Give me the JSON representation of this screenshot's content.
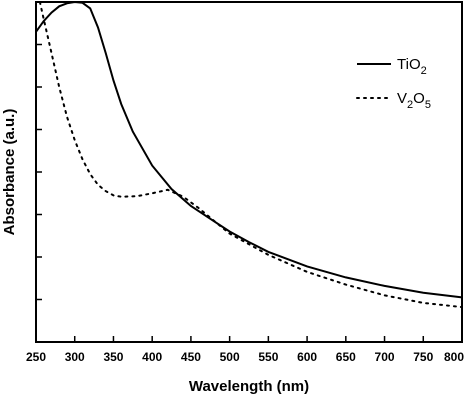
{
  "chart_data": {
    "type": "line",
    "xlabel": "Wavelength (nm)",
    "ylabel": "Absorbance (a.u.)",
    "xlim": [
      250,
      800
    ],
    "ylim": [
      0,
      8
    ],
    "x_ticks": [
      250,
      300,
      350,
      400,
      450,
      500,
      550,
      600,
      650,
      700,
      750,
      800
    ],
    "y_ticks_labeled": false,
    "grid": false,
    "legend_position": "top-right",
    "series": [
      {
        "name": "TiO2",
        "legend_main": "TiO",
        "legend_sub": "2",
        "line_style": "solid",
        "color": "#000000",
        "points": [
          [
            250,
            7.3
          ],
          [
            260,
            7.55
          ],
          [
            270,
            7.75
          ],
          [
            280,
            7.9
          ],
          [
            290,
            7.97
          ],
          [
            300,
            8.0
          ],
          [
            310,
            7.98
          ],
          [
            320,
            7.85
          ],
          [
            330,
            7.4
          ],
          [
            340,
            6.8
          ],
          [
            350,
            6.15
          ],
          [
            360,
            5.6
          ],
          [
            375,
            4.95
          ],
          [
            400,
            4.15
          ],
          [
            425,
            3.6
          ],
          [
            450,
            3.2
          ],
          [
            475,
            2.9
          ],
          [
            500,
            2.6
          ],
          [
            525,
            2.35
          ],
          [
            550,
            2.12
          ],
          [
            600,
            1.78
          ],
          [
            650,
            1.52
          ],
          [
            700,
            1.32
          ],
          [
            750,
            1.16
          ],
          [
            800,
            1.05
          ]
        ]
      },
      {
        "name": "V2O5",
        "legend_main": "V",
        "legend_sub": "2",
        "legend_main2": "O",
        "legend_sub2": "5",
        "line_style": "dotted",
        "color": "#000000",
        "points": [
          [
            255,
            8.0
          ],
          [
            260,
            7.6
          ],
          [
            270,
            6.8
          ],
          [
            280,
            6.0
          ],
          [
            290,
            5.3
          ],
          [
            300,
            4.75
          ],
          [
            310,
            4.3
          ],
          [
            320,
            3.95
          ],
          [
            330,
            3.7
          ],
          [
            340,
            3.55
          ],
          [
            350,
            3.45
          ],
          [
            360,
            3.42
          ],
          [
            380,
            3.43
          ],
          [
            400,
            3.5
          ],
          [
            420,
            3.58
          ],
          [
            440,
            3.42
          ],
          [
            460,
            3.15
          ],
          [
            480,
            2.85
          ],
          [
            500,
            2.55
          ],
          [
            550,
            2.05
          ],
          [
            600,
            1.65
          ],
          [
            650,
            1.35
          ],
          [
            700,
            1.1
          ],
          [
            750,
            0.92
          ],
          [
            800,
            0.82
          ]
        ]
      }
    ]
  }
}
